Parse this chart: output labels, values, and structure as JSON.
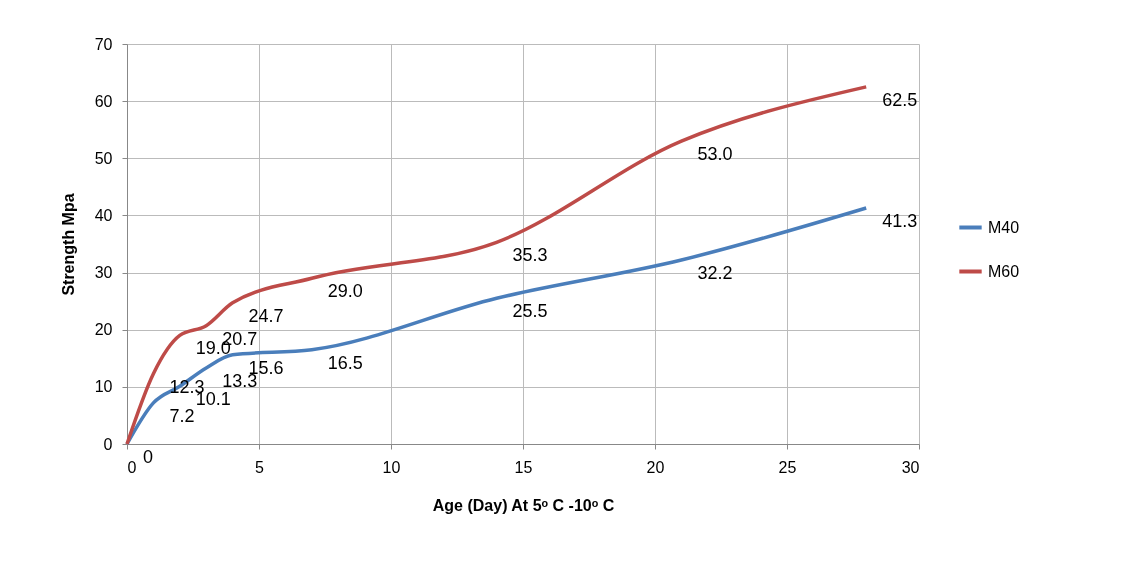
{
  "chart_data": {
    "type": "line",
    "xlabel": "Age (Day) At 5ᵒ C -10ᵒ C",
    "ylabel": "Strength Mpa",
    "x": [
      0,
      1,
      2,
      3,
      4,
      7,
      14,
      21,
      28
    ],
    "series": [
      {
        "name": "M40",
        "color": "#4a7ebb",
        "values": [
          0,
          7.2,
          10.1,
          13.3,
          15.6,
          16.5,
          25.5,
          32.2,
          41.3
        ],
        "value_labels": [
          "0",
          "7.2",
          "10.1",
          "13.3",
          "15.6",
          "16.5",
          "25.5",
          "32.2",
          "41.3"
        ]
      },
      {
        "name": "M60",
        "color": "#be4b48",
        "values": [
          0,
          12.3,
          19.0,
          20.7,
          24.7,
          29.0,
          35.3,
          53.0,
          62.5
        ],
        "value_labels": [
          null,
          "12.3",
          "19.0",
          "20.7",
          "24.7",
          "29.0",
          "35.3",
          "53.0",
          "62.5"
        ]
      }
    ],
    "xlim": [
      0,
      30
    ],
    "xticks": [
      0,
      5,
      10,
      15,
      20,
      25,
      30
    ],
    "ylim": [
      0,
      70
    ],
    "yticks": [
      0,
      10,
      20,
      30,
      40,
      50,
      60,
      70
    ],
    "grid": true,
    "legend": "right",
    "marker": "none",
    "line_style": "solid"
  }
}
